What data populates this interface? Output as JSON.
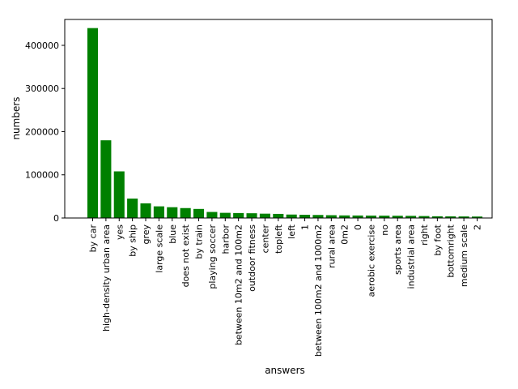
{
  "chart_data": {
    "type": "bar",
    "title": "",
    "xlabel": "answers",
    "ylabel": "numbers",
    "ylim": [
      0,
      460000
    ],
    "yticks": [
      0,
      100000,
      200000,
      300000,
      400000
    ],
    "ytick_labels": [
      "0",
      "100000",
      "200000",
      "300000",
      "400000"
    ],
    "grid": false,
    "bar_color": "#008000",
    "categories": [
      "by car",
      "high-density urban area",
      "yes",
      "by ship",
      "grey",
      "large scale",
      "blue",
      "does not exist",
      "by train",
      "playing soccer",
      "harbor",
      "between 10m2 and 100m2",
      "outdoor fitness",
      "center",
      "topleft",
      "left",
      "1",
      "between 100m2 and 1000m2",
      "rural area",
      "0m2",
      "0",
      "aerobic exercise",
      "no",
      "sports area",
      "industrial area",
      "right",
      "by foot",
      "bottomright",
      "medium scale",
      "2"
    ],
    "values": [
      440000,
      180000,
      108000,
      45000,
      34000,
      27000,
      25000,
      23000,
      21000,
      14000,
      12000,
      11500,
      11000,
      10000,
      9500,
      8000,
      7500,
      7000,
      6500,
      6000,
      5800,
      5600,
      5400,
      5200,
      5000,
      4500,
      4000,
      3800,
      3600,
      3400
    ]
  }
}
